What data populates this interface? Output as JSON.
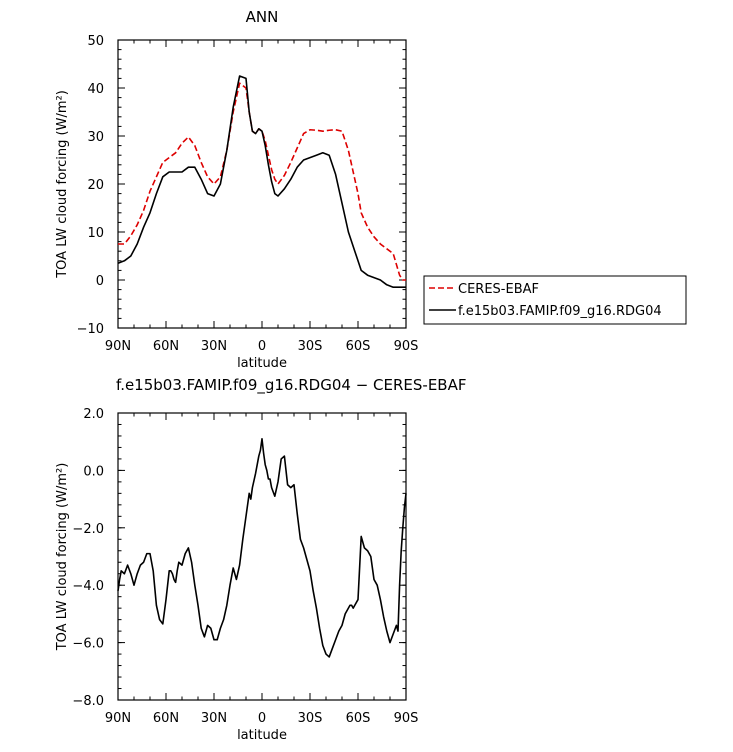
{
  "chart_data": [
    {
      "type": "line",
      "title": "ANN",
      "xlabel": "latitude",
      "ylabel": "TOA LW cloud forcing (W/m²)",
      "xlim": [
        90,
        -90
      ],
      "ylim": [
        -10,
        50
      ],
      "xticks": [
        {
          "value": 90,
          "label": "90N"
        },
        {
          "value": 60,
          "label": "60N"
        },
        {
          "value": 30,
          "label": "30N"
        },
        {
          "value": 0,
          "label": "0"
        },
        {
          "value": -30,
          "label": "30S"
        },
        {
          "value": -60,
          "label": "60S"
        },
        {
          "value": -90,
          "label": "90S"
        }
      ],
      "yticks": [
        {
          "value": -10,
          "label": "−10"
        },
        {
          "value": 0,
          "label": "0"
        },
        {
          "value": 10,
          "label": "10"
        },
        {
          "value": 20,
          "label": "20"
        },
        {
          "value": 30,
          "label": "30"
        },
        {
          "value": 40,
          "label": "40"
        },
        {
          "value": 50,
          "label": "50"
        }
      ],
      "legend": {
        "placement": "right"
      },
      "series": [
        {
          "name": "CERES-EBAF",
          "color": "#dd0000",
          "dash": "dashed",
          "x": [
            90,
            86,
            82,
            78,
            74,
            70,
            66,
            62,
            58,
            54,
            50,
            46,
            42,
            38,
            34,
            30,
            26,
            22,
            18,
            14,
            10,
            8,
            6,
            4,
            2,
            0,
            -2,
            -4,
            -6,
            -8,
            -10,
            -14,
            -18,
            -22,
            -26,
            -30,
            -34,
            -38,
            -42,
            -46,
            -50,
            -54,
            -58,
            -60,
            -62,
            -66,
            -70,
            -74,
            -78,
            -82,
            -86,
            -88,
            -90
          ],
          "y": [
            7.5,
            7.5,
            9.2,
            11.5,
            14.5,
            18.5,
            21.5,
            24.5,
            25.5,
            26.5,
            28.5,
            29.8,
            28.0,
            24.5,
            21.5,
            20.0,
            21.5,
            27.0,
            35.0,
            41.0,
            40.0,
            35.0,
            31.0,
            30.5,
            31.5,
            31.0,
            29.0,
            26.0,
            23.0,
            21.0,
            20.0,
            21.8,
            24.5,
            27.5,
            30.5,
            31.3,
            31.2,
            31.0,
            31.2,
            31.3,
            31.0,
            27.0,
            21.0,
            18.0,
            14.0,
            11.0,
            9.0,
            7.5,
            6.5,
            5.5,
            1.0,
            0.0,
            0.0
          ]
        },
        {
          "name": "f.e15b03.FAMIP.f09_g16.RDG04",
          "color": "#000000",
          "dash": "solid",
          "x": [
            90,
            86,
            82,
            78,
            74,
            70,
            66,
            62,
            58,
            54,
            50,
            46,
            42,
            38,
            34,
            30,
            26,
            22,
            18,
            14,
            10,
            8,
            6,
            4,
            2,
            0,
            -2,
            -4,
            -6,
            -8,
            -10,
            -14,
            -18,
            -22,
            -26,
            -30,
            -34,
            -38,
            -42,
            -46,
            -50,
            -54,
            -58,
            -60,
            -62,
            -66,
            -70,
            -74,
            -78,
            -82,
            -86,
            -88,
            -90
          ],
          "y": [
            3.5,
            4.0,
            5.0,
            7.5,
            11.0,
            14.0,
            18.0,
            21.5,
            22.5,
            22.5,
            22.5,
            23.5,
            23.5,
            21.0,
            18.0,
            17.5,
            20.0,
            27.0,
            36.0,
            42.5,
            42.0,
            35.0,
            31.0,
            30.5,
            31.5,
            31.0,
            28.0,
            24.0,
            20.5,
            18.0,
            17.5,
            19.0,
            21.0,
            23.5,
            25.0,
            25.5,
            26.0,
            26.5,
            26.0,
            22.0,
            16.0,
            10.0,
            6.0,
            4.0,
            2.0,
            1.0,
            0.5,
            0.0,
            -1.0,
            -1.5,
            -1.5,
            -1.5,
            -1.5
          ]
        }
      ]
    },
    {
      "type": "line",
      "title": "f.e15b03.FAMIP.f09_g16.RDG04 − CERES-EBAF",
      "xlabel": "latitude",
      "ylabel": "TOA LW cloud forcing (W/m²)",
      "xlim": [
        90,
        -90
      ],
      "ylim": [
        -8,
        2
      ],
      "xticks": [
        {
          "value": 90,
          "label": "90N"
        },
        {
          "value": 60,
          "label": "60N"
        },
        {
          "value": 30,
          "label": "30N"
        },
        {
          "value": 0,
          "label": "0"
        },
        {
          "value": -30,
          "label": "30S"
        },
        {
          "value": -60,
          "label": "60S"
        },
        {
          "value": -90,
          "label": "90S"
        }
      ],
      "yticks": [
        {
          "value": -8,
          "label": "−8.0"
        },
        {
          "value": -6,
          "label": "−6.0"
        },
        {
          "value": -4,
          "label": "−4.0"
        },
        {
          "value": -2,
          "label": "−2.0"
        },
        {
          "value": 0,
          "label": "0.0"
        },
        {
          "value": 2,
          "label": "2.0"
        }
      ],
      "series": [
        {
          "color": "#000000",
          "dash": "solid",
          "x": [
            90,
            89,
            88,
            86,
            84,
            82,
            80,
            78,
            76,
            74,
            72,
            70,
            68,
            66,
            64,
            62,
            60,
            58,
            57,
            56,
            55,
            54,
            53,
            52,
            50,
            48,
            46,
            44,
            42,
            40,
            38,
            36,
            34,
            32,
            30,
            28,
            26,
            24,
            22,
            20,
            18,
            16,
            14,
            12,
            10,
            8,
            7,
            6,
            4,
            2,
            1,
            0,
            -1,
            -2,
            -3,
            -4,
            -5,
            -6,
            -8,
            -10,
            -12,
            -14,
            -16,
            -18,
            -20,
            -22,
            -24,
            -26,
            -28,
            -30,
            -32,
            -34,
            -36,
            -38,
            -40,
            -42,
            -44,
            -46,
            -48,
            -50,
            -52,
            -54,
            -55,
            -56,
            -57,
            -58,
            -60,
            -62,
            -64,
            -66,
            -68,
            -70,
            -72,
            -74,
            -76,
            -78,
            -80,
            -82,
            -84,
            -85,
            -86,
            -87,
            -88,
            -89,
            -90
          ],
          "y": [
            -4.2,
            -3.8,
            -3.5,
            -3.6,
            -3.3,
            -3.6,
            -4.0,
            -3.6,
            -3.3,
            -3.2,
            -2.9,
            -2.9,
            -3.5,
            -4.7,
            -5.2,
            -5.35,
            -4.5,
            -3.5,
            -3.5,
            -3.6,
            -3.8,
            -3.9,
            -3.5,
            -3.2,
            -3.3,
            -2.9,
            -2.7,
            -3.2,
            -4.0,
            -4.7,
            -5.5,
            -5.8,
            -5.4,
            -5.5,
            -5.9,
            -5.9,
            -5.5,
            -5.2,
            -4.7,
            -4.0,
            -3.4,
            -3.8,
            -3.3,
            -2.4,
            -1.6,
            -0.8,
            -1.0,
            -0.6,
            -0.1,
            0.5,
            0.7,
            1.1,
            0.6,
            0.2,
            0.0,
            -0.3,
            -0.3,
            -0.6,
            -0.9,
            -0.4,
            0.4,
            0.5,
            -0.5,
            -0.6,
            -0.5,
            -1.5,
            -2.4,
            -2.7,
            -3.1,
            -3.5,
            -4.2,
            -4.8,
            -5.5,
            -6.1,
            -6.4,
            -6.5,
            -6.2,
            -5.9,
            -5.6,
            -5.4,
            -5.0,
            -4.8,
            -4.7,
            -4.7,
            -4.8,
            -4.7,
            -4.5,
            -2.3,
            -2.7,
            -2.8,
            -3.0,
            -3.8,
            -4.0,
            -4.5,
            -5.1,
            -5.6,
            -6.0,
            -5.7,
            -5.4,
            -5.6,
            -4.0,
            -2.8,
            -2.0,
            -1.3,
            -0.8
          ]
        }
      ]
    }
  ]
}
